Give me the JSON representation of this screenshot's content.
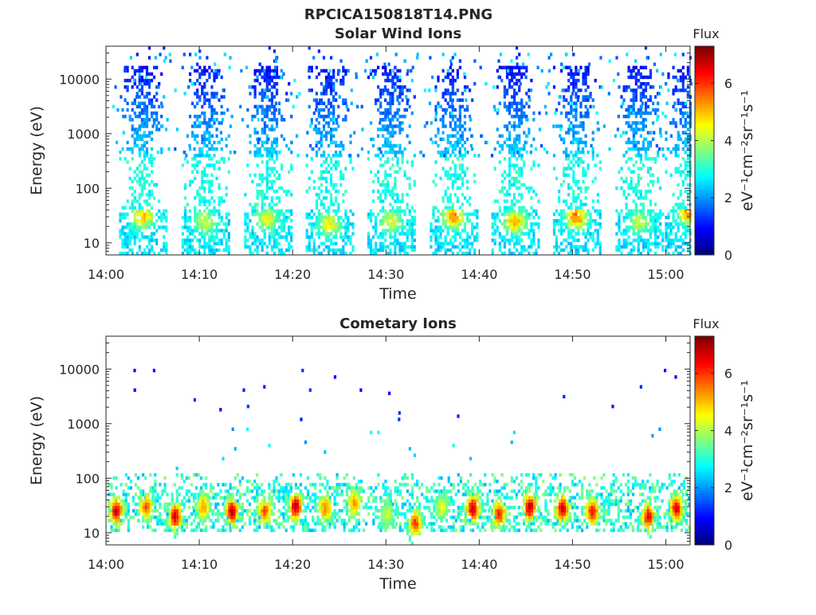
{
  "figure_title": "RPCICA150818T14.PNG",
  "chart_data": [
    {
      "type": "heatmap",
      "title": "Solar Wind Ions",
      "xlabel": "Time",
      "ylabel": "Energy (eV)",
      "y_scale": "log",
      "ylim": [
        6,
        40000
      ],
      "x_range": [
        "14:00",
        "15:02"
      ],
      "x_ticks": [
        "14:00",
        "14:10",
        "14:20",
        "14:30",
        "14:40",
        "14:50",
        "15:00"
      ],
      "y_ticks": [
        "10",
        "100",
        "1000",
        "10000"
      ],
      "colorbar": {
        "title": "Flux",
        "label": "eV⁻¹cm⁻²sr⁻¹s⁻¹",
        "ticks": [
          "0",
          "2",
          "4",
          "6"
        ],
        "range": [
          0,
          7.3
        ],
        "colormap": "jet"
      },
      "scan_centers_min": [
        3.8,
        10.5,
        17.2,
        23.8,
        30.4,
        37.1,
        43.7,
        50.3,
        57.0,
        62.3
      ],
      "peak_energy_eV": [
        30,
        25,
        28,
        22,
        25,
        30,
        25,
        30,
        24,
        35
      ],
      "peak_flux": [
        5.0,
        4.3,
        4.5,
        4.6,
        4.4,
        5.5,
        5.2,
        5.6,
        4.2,
        5.4
      ]
    },
    {
      "type": "heatmap",
      "title": "Cometary Ions",
      "xlabel": "Time",
      "ylabel": "Energy (eV)",
      "y_scale": "log",
      "ylim": [
        6,
        40000
      ],
      "x_range": [
        "14:00",
        "15:02"
      ],
      "x_ticks": [
        "14:00",
        "14:10",
        "14:20",
        "14:30",
        "14:40",
        "14:50",
        "15:00"
      ],
      "y_ticks": [
        "10",
        "100",
        "1000",
        "10000"
      ],
      "colorbar": {
        "title": "Flux",
        "label": "eV⁻¹cm⁻²sr⁻¹s⁻¹",
        "ticks": [
          "0",
          "2",
          "4",
          "6"
        ],
        "range": [
          0,
          7.3
        ],
        "colormap": "jet"
      },
      "blob_centers_min": [
        1.0,
        4.2,
        7.3,
        10.3,
        13.4,
        16.9,
        20.2,
        23.4,
        26.5,
        30.0,
        33.0,
        35.9,
        39.2,
        42.0,
        45.3,
        48.8,
        52.0,
        58.0,
        61.0
      ],
      "blob_energy_eV": [
        25,
        30,
        20,
        30,
        25,
        25,
        30,
        28,
        35,
        22,
        15,
        30,
        28,
        22,
        30,
        28,
        25,
        20,
        28
      ],
      "blob_flux": [
        6.8,
        5.8,
        6.8,
        5.2,
        6.8,
        5.8,
        7.0,
        5.6,
        5.4,
        4.2,
        6.0,
        4.4,
        6.9,
        6.2,
        7.0,
        6.8,
        6.4,
        6.6,
        6.6
      ]
    }
  ]
}
